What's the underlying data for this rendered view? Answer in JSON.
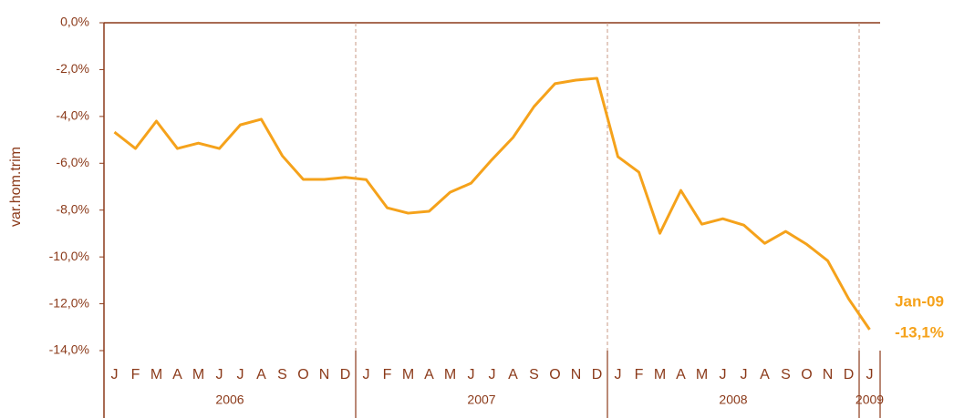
{
  "chart_data": {
    "type": "line",
    "y_label": "var.hom.trim",
    "categories": [
      "J",
      "F",
      "M",
      "A",
      "M",
      "J",
      "J",
      "A",
      "S",
      "O",
      "N",
      "D",
      "J",
      "F",
      "M",
      "A",
      "M",
      "J",
      "J",
      "A",
      "S",
      "O",
      "N",
      "D",
      "J",
      "F",
      "M",
      "A",
      "M",
      "J",
      "J",
      "A",
      "S",
      "O",
      "N",
      "D",
      "J"
    ],
    "year_groups": [
      {
        "label": "2006",
        "span": 12
      },
      {
        "label": "2007",
        "span": 12
      },
      {
        "label": "2008",
        "span": 12
      },
      {
        "label": "2009",
        "span": 1
      }
    ],
    "values": [
      -4.67,
      -5.37,
      -4.2,
      -5.37,
      -5.14,
      -5.37,
      -4.36,
      -4.12,
      -5.68,
      -6.69,
      -6.69,
      -6.6,
      -6.7,
      -7.9,
      -8.13,
      -8.05,
      -7.24,
      -6.85,
      -5.84,
      -4.9,
      -3.58,
      -2.6,
      -2.45,
      -2.37,
      -5.72,
      -6.38,
      -8.99,
      -7.16,
      -8.6,
      -8.37,
      -8.64,
      -9.42,
      -8.91,
      -9.46,
      -10.16,
      -11.79,
      -13.1
    ],
    "color": "#f5a21b",
    "ylim": [
      -14,
      0
    ],
    "yticks": [
      {
        "value": 0,
        "label": "0,0%"
      },
      {
        "value": -2,
        "label": "-2,0%"
      },
      {
        "value": -4,
        "label": "-4,0%"
      },
      {
        "value": -6,
        "label": "-6,0%"
      },
      {
        "value": -8,
        "label": "-8,0%"
      },
      {
        "value": -10,
        "label": "-10,0%"
      },
      {
        "value": -12,
        "label": "-12,0%"
      },
      {
        "value": -14,
        "label": "-14,0%"
      }
    ],
    "annotations": [
      "Jan-09",
      "-13,1%"
    ]
  }
}
